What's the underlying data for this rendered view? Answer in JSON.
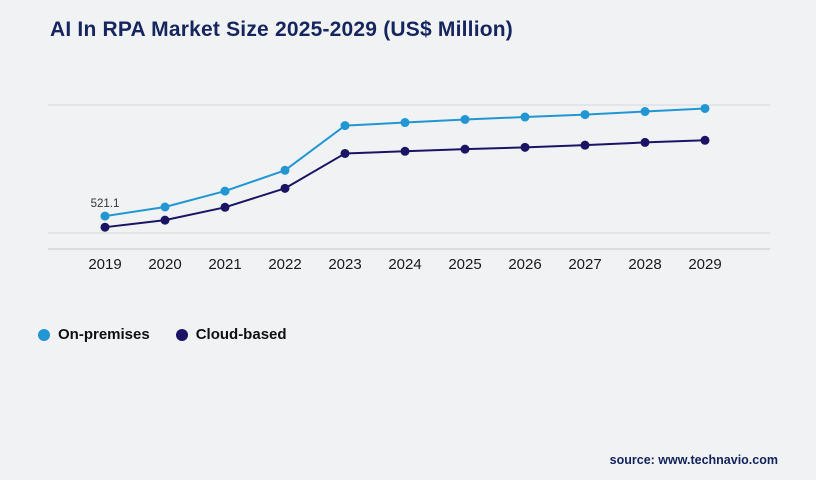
{
  "title": "AI In RPA Market Size 2025-2029 (US$ Million)",
  "source": "source: www.technavio.com",
  "legend": [
    {
      "label": "On-premises",
      "color": "#2196d3"
    },
    {
      "label": "Cloud-based",
      "color": "#1b1464"
    }
  ],
  "chart_data": {
    "type": "line",
    "title": "AI In RPA Market Size 2025-2029 (US$ Million)",
    "categories": [
      "2019",
      "2020",
      "2021",
      "2022",
      "2023",
      "2024",
      "2025",
      "2026",
      "2027",
      "2028",
      "2029"
    ],
    "series": [
      {
        "name": "On-premises",
        "color": "#2196d3",
        "values": [
          521.1,
          670,
          930,
          1270,
          2000,
          2050,
          2100,
          2140,
          2180,
          2230,
          2280
        ]
      },
      {
        "name": "Cloud-based",
        "color": "#1b1464",
        "values": [
          340,
          455,
          665,
          975,
          1545,
          1580,
          1615,
          1645,
          1680,
          1725,
          1760
        ]
      }
    ],
    "xlabel": "",
    "ylabel": "US$ Million",
    "ylim": [
      0,
      2500
    ],
    "grid": true,
    "legend_position": "bottom-left",
    "data_labels": [
      {
        "series": 0,
        "index": 0,
        "text": "521.1"
      }
    ]
  }
}
